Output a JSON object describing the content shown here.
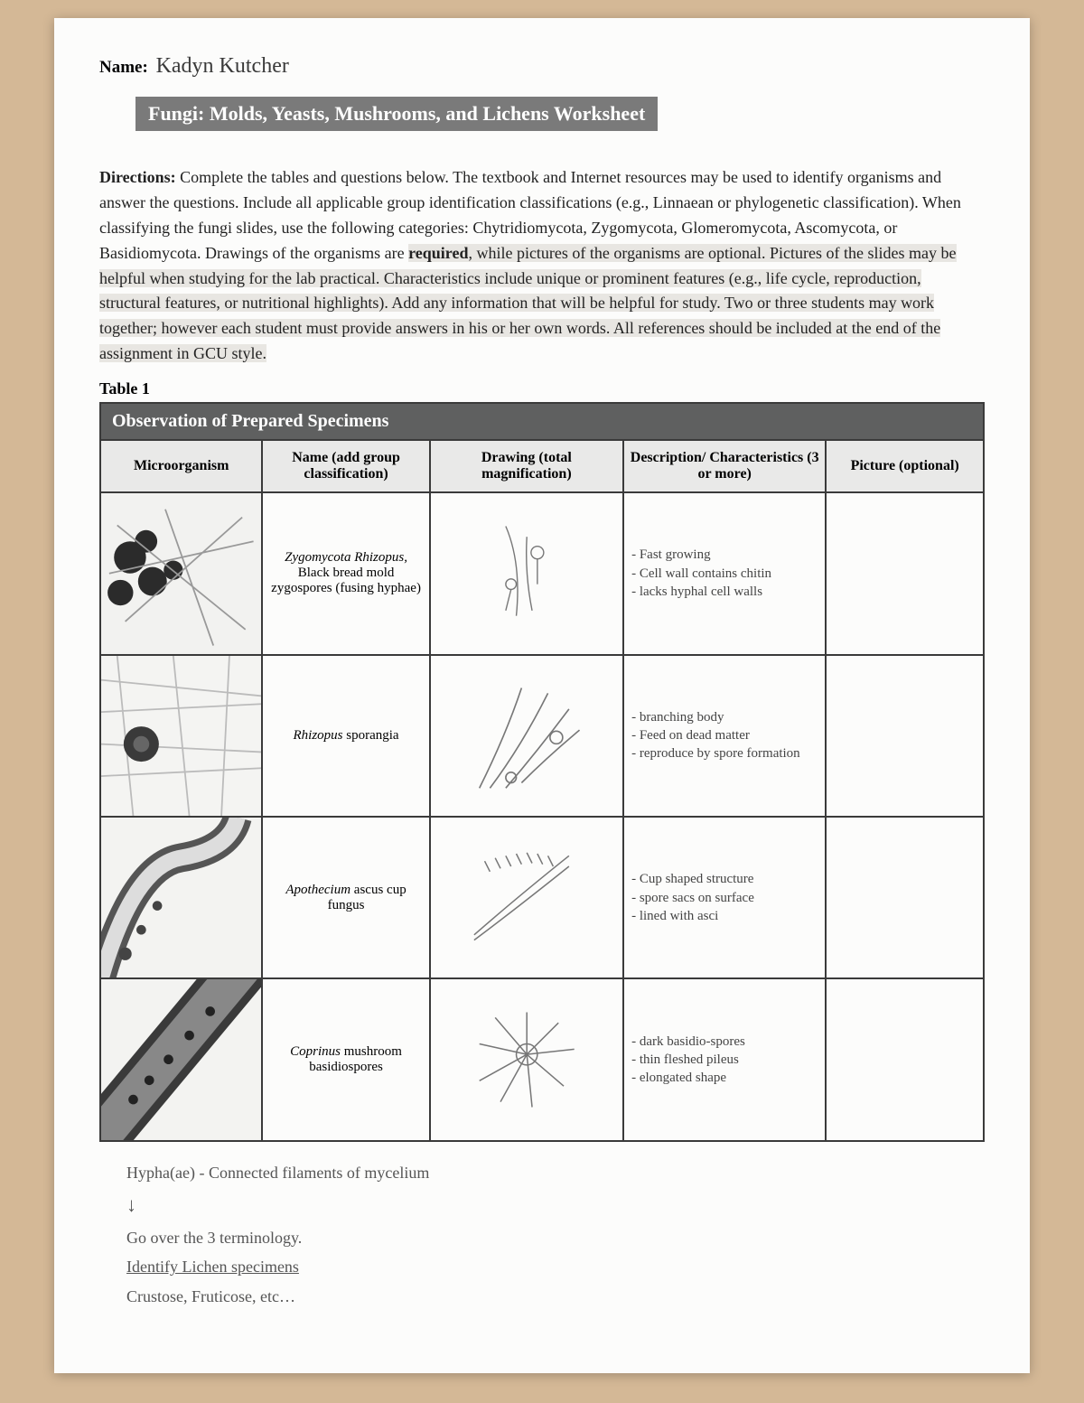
{
  "name_label": "Name:",
  "student_name": "Kadyn Kutcher",
  "title": "Fungi: Molds, Yeasts, Mushrooms, and Lichens Worksheet",
  "directions_label": "Directions:",
  "directions_body": " Complete the tables and questions below. The textbook and Internet resources may be used to identify organisms and answer the questions. Include all applicable group identification classifications (e.g., Linnaean or phylogenetic classification). When classifying the fungi slides, use the following categories: Chytridiomycota, Zygomycota, Glomeromycota, Ascomycota, or Basidiomycota. Drawings of the organisms are ",
  "directions_req": "required",
  "directions_tail": ", while pictures of the organisms are optional. Pictures of the slides may be helpful when studying for the lab practical. Characteristics include unique or prominent features (e.g., life cycle, reproduction, structural features, or nutritional highlights). Add any information that will be helpful for study. Two or three students may work together; however each student must provide answers in his or her own words. All references should be included at the end of the assignment in GCU style.",
  "table_label": "Table 1",
  "table": {
    "banner": "Observation of Prepared Specimens",
    "columns": [
      "Microorganism",
      "Name\n(add group classification)",
      "Drawing\n(total magnification)",
      "Description/\nCharacteristics\n(3 or more)",
      "Picture\n(optional)"
    ],
    "rows": [
      {
        "name_italic": "Zygomycota Rhizopus,",
        "name_plain": "Black bread mold zygospores (fusing hyphae)",
        "desc": [
          "Fast growing",
          "Cell wall contains chitin",
          "lacks hyphal cell walls"
        ]
      },
      {
        "name_italic": "Rhizopus",
        "name_plain": " sporangia",
        "desc": [
          "branching body",
          "Feed on dead matter",
          "reproduce by spore formation"
        ]
      },
      {
        "name_italic": "Apothecium",
        "name_plain": " ascus cup fungus",
        "desc": [
          "Cup shaped structure",
          "spore sacs on surface",
          "lined with asci"
        ]
      },
      {
        "name_italic": "Coprinus",
        "name_plain": " mushroom basidiospores",
        "desc": [
          "dark basidio-spores",
          "thin fleshed pileus",
          "elongated shape"
        ]
      }
    ]
  },
  "notes": {
    "l1": "Hypha(ae) - Connected filaments of mycelium",
    "arrow": "↓",
    "l2": "Go over the 3 terminology.",
    "l3": "Identify Lichen specimens",
    "l4": "Crustose, Fruticose, etc…"
  },
  "colors": {
    "desk": "#d4b896",
    "paper": "#fcfcfb",
    "title_bg": "#7a7a7a",
    "banner_bg": "#5f6060",
    "header_bg": "#e9e9e8",
    "border": "#3a3a3a",
    "highlight": "#e8e6e2",
    "pen": "#444"
  }
}
